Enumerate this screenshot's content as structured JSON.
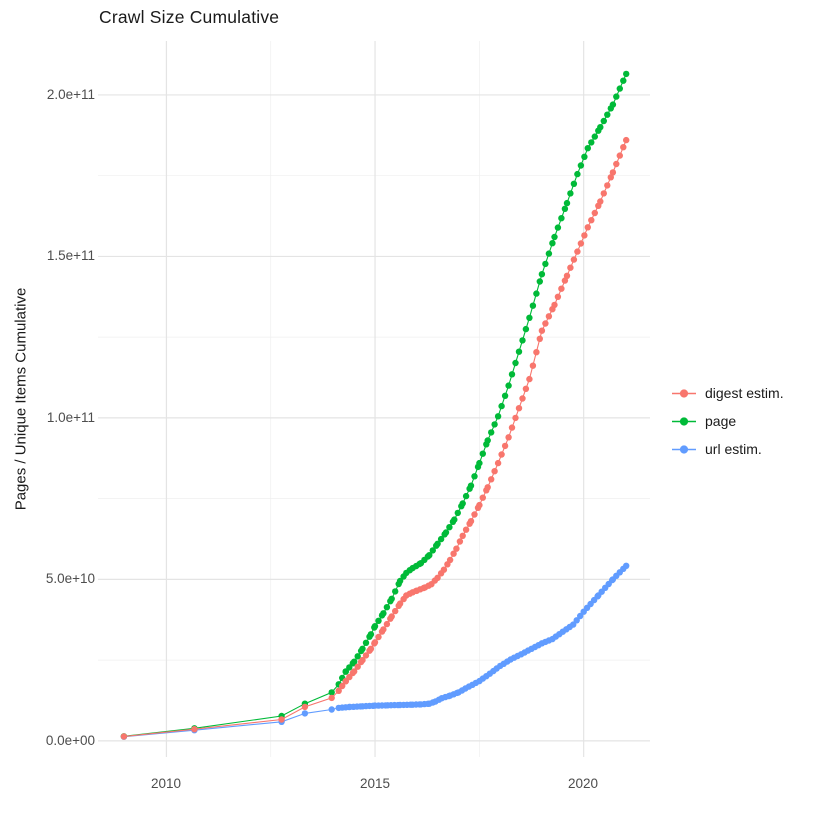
{
  "title": "Crawl Size Cumulative",
  "axes": {
    "x": {
      "ticks": [
        {
          "value": 2010,
          "label": "2010"
        },
        {
          "value": 2015,
          "label": "2015"
        },
        {
          "value": 2020,
          "label": "2020"
        }
      ],
      "minor": [
        2012.5,
        2017.5
      ],
      "range": [
        2008.36,
        2021.59
      ]
    },
    "y": {
      "title": "Pages / Unique Items Cumulative",
      "ticks": [
        {
          "value": 0,
          "label": "0.0e+00"
        },
        {
          "value": 50000000000.0,
          "label": "5.0e+10"
        },
        {
          "value": 100000000000.0,
          "label": "1.0e+11"
        },
        {
          "value": 150000000000.0,
          "label": "1.5e+11"
        },
        {
          "value": 200000000000.0,
          "label": "2.0e+11"
        }
      ],
      "minor": [
        25000000000.0,
        75000000000.0,
        125000000000.0,
        175000000000.0
      ],
      "range": [
        -5000000000.0,
        216700000000.0
      ]
    }
  },
  "grid": {
    "major_color": "#e4e4e4",
    "minor_color": "#efefef"
  },
  "chart_data": {
    "type": "scatter",
    "title": "Crawl Size Cumulative",
    "xlabel": "",
    "ylabel": "Pages / Unique Items Cumulative",
    "x_domain": [
      2008.98,
      2021.02
    ],
    "y_domain": [
      0,
      206500000000.0
    ],
    "legend_position": "right",
    "grid": true,
    "points_are_keypoints_of_monthly_dot_series": true,
    "dense_from": 2014.0,
    "dot_step_years": 0.0833,
    "series": [
      {
        "name": "digest estim.",
        "color": "#F8766D",
        "points": [
          [
            2008.98,
            1350000000.0
          ],
          [
            2010.67,
            3600000000.0
          ],
          [
            2012.76,
            6600000000.0
          ],
          [
            2013.32,
            10500000000.0
          ],
          [
            2013.96,
            13300000000.0
          ],
          [
            2014.13,
            15500000000.0
          ],
          [
            2014.3,
            18500000000.0
          ],
          [
            2014.5,
            21500000000.0
          ],
          [
            2014.7,
            25000000000.0
          ],
          [
            2014.9,
            28500000000.0
          ],
          [
            2015.0,
            30500000000.0
          ],
          [
            2015.2,
            34500000000.0
          ],
          [
            2015.4,
            38500000000.0
          ],
          [
            2015.6,
            42500000000.0
          ],
          [
            2015.75,
            45000000000.0
          ],
          [
            2015.9,
            46000000000.0
          ],
          [
            2016.0,
            46500000000.0
          ],
          [
            2016.2,
            47500000000.0
          ],
          [
            2016.35,
            48500000000.0
          ],
          [
            2016.5,
            50500000000.0
          ],
          [
            2016.65,
            53000000000.0
          ],
          [
            2016.8,
            56000000000.0
          ],
          [
            2016.95,
            59500000000.0
          ],
          [
            2017.1,
            63500000000.0
          ],
          [
            2017.3,
            68000000000.0
          ],
          [
            2017.5,
            73000000000.0
          ],
          [
            2017.7,
            78500000000.0
          ],
          [
            2017.95,
            86000000000.0
          ],
          [
            2018.2,
            94000000000.0
          ],
          [
            2018.45,
            103000000000.0
          ],
          [
            2018.7,
            112000000000.0
          ],
          [
            2019.0,
            127000000000.0
          ],
          [
            2019.3,
            135000000000.0
          ],
          [
            2019.6,
            144000000000.0
          ],
          [
            2019.85,
            151500000000.0
          ],
          [
            2020.1,
            159000000000.0
          ],
          [
            2020.4,
            167000000000.0
          ],
          [
            2020.7,
            176000000000.0
          ],
          [
            2021.02,
            186000000000.0
          ]
        ]
      },
      {
        "name": "page",
        "color": "#00BA38",
        "points": [
          [
            2008.98,
            1400000000.0
          ],
          [
            2010.67,
            3900000000.0
          ],
          [
            2012.76,
            7700000000.0
          ],
          [
            2013.32,
            11500000000.0
          ],
          [
            2013.96,
            15000000000.0
          ],
          [
            2014.13,
            17500000000.0
          ],
          [
            2014.3,
            21500000000.0
          ],
          [
            2014.5,
            24500000000.0
          ],
          [
            2014.7,
            28500000000.0
          ],
          [
            2014.9,
            33000000000.0
          ],
          [
            2015.0,
            35500000000.0
          ],
          [
            2015.2,
            39500000000.0
          ],
          [
            2015.4,
            44000000000.0
          ],
          [
            2015.6,
            49500000000.0
          ],
          [
            2015.75,
            52000000000.0
          ],
          [
            2015.9,
            53500000000.0
          ],
          [
            2016.1,
            55000000000.0
          ],
          [
            2016.3,
            57500000000.0
          ],
          [
            2016.5,
            61000000000.0
          ],
          [
            2016.7,
            64500000000.0
          ],
          [
            2016.9,
            68500000000.0
          ],
          [
            2017.1,
            73500000000.0
          ],
          [
            2017.3,
            79000000000.0
          ],
          [
            2017.5,
            86000000000.0
          ],
          [
            2017.7,
            93000000000.0
          ],
          [
            2017.95,
            100500000000.0
          ],
          [
            2018.2,
            110000000000.0
          ],
          [
            2018.45,
            120500000000.0
          ],
          [
            2018.7,
            131000000000.0
          ],
          [
            2019.0,
            144500000000.0
          ],
          [
            2019.3,
            156000000000.0
          ],
          [
            2019.6,
            166500000000.0
          ],
          [
            2019.85,
            175500000000.0
          ],
          [
            2020.1,
            183500000000.0
          ],
          [
            2020.4,
            190000000000.0
          ],
          [
            2020.7,
            197000000000.0
          ],
          [
            2021.02,
            206500000000.0
          ]
        ]
      },
      {
        "name": "url estim.",
        "color": "#619CFF",
        "points": [
          [
            2008.98,
            1300000000.0
          ],
          [
            2010.67,
            3300000000.0
          ],
          [
            2012.76,
            5900000000.0
          ],
          [
            2013.32,
            8500000000.0
          ],
          [
            2013.96,
            9700000000.0
          ],
          [
            2014.13,
            10200000000.0
          ],
          [
            2014.4,
            10500000000.0
          ],
          [
            2014.7,
            10700000000.0
          ],
          [
            2015.0,
            10900000000.0
          ],
          [
            2015.3,
            11000000000.0
          ],
          [
            2015.6,
            11100000000.0
          ],
          [
            2015.9,
            11200000000.0
          ],
          [
            2016.1,
            11300000000.0
          ],
          [
            2016.3,
            11500000000.0
          ],
          [
            2016.45,
            12200000000.0
          ],
          [
            2016.6,
            13200000000.0
          ],
          [
            2016.8,
            14000000000.0
          ],
          [
            2017.0,
            15000000000.0
          ],
          [
            2017.25,
            16800000000.0
          ],
          [
            2017.5,
            18500000000.0
          ],
          [
            2017.75,
            20800000000.0
          ],
          [
            2018.0,
            23200000000.0
          ],
          [
            2018.25,
            25200000000.0
          ],
          [
            2018.5,
            26800000000.0
          ],
          [
            2018.75,
            28500000000.0
          ],
          [
            2019.0,
            30200000000.0
          ],
          [
            2019.25,
            31500000000.0
          ],
          [
            2019.5,
            33800000000.0
          ],
          [
            2019.75,
            36000000000.0
          ],
          [
            2020.0,
            40000000000.0
          ],
          [
            2020.35,
            45000000000.0
          ],
          [
            2020.7,
            50000000000.0
          ],
          [
            2021.02,
            54200000000.0
          ]
        ]
      }
    ]
  }
}
